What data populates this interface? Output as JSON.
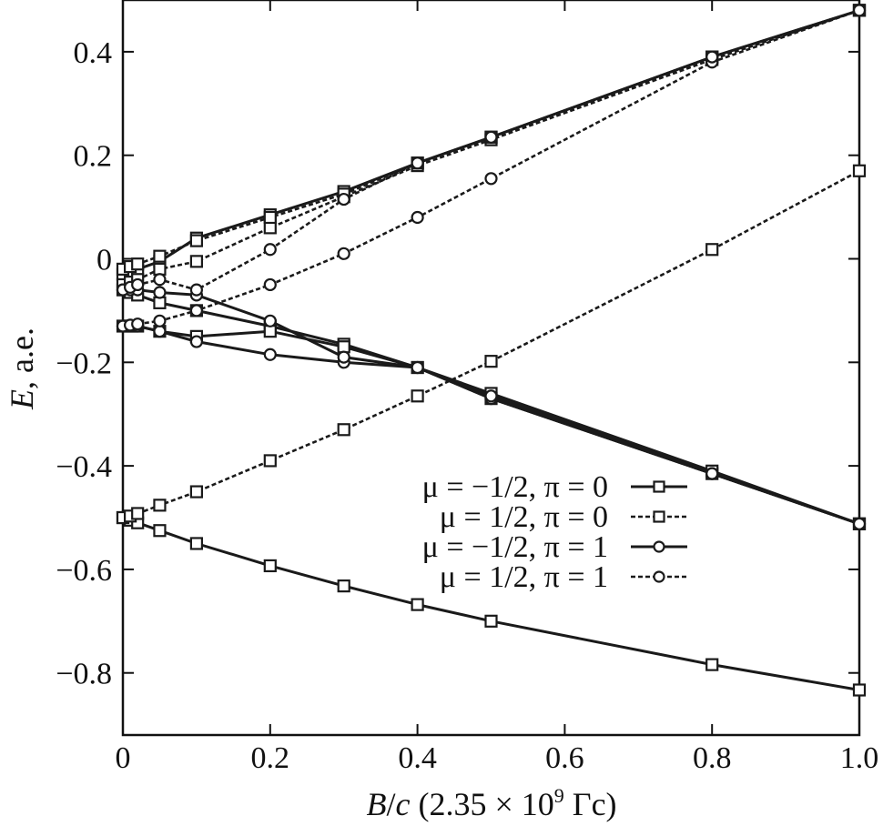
{
  "chart_data": {
    "type": "line",
    "title": "",
    "xlabel_parts": {
      "var": "B",
      "slash": "/",
      "var2": "c",
      "rest_pre": " (2.35 × 10",
      "sup": "9",
      "rest_post": " Гс)"
    },
    "ylabel_parts": {
      "var": "E",
      "rest": ", а.е."
    },
    "xlim": [
      0,
      1.0
    ],
    "ylim": [
      -0.92,
      0.5
    ],
    "x_ticks": [
      0,
      0.2,
      0.4,
      0.6,
      0.8,
      1.0
    ],
    "x_tick_labels": [
      "0",
      "0.2",
      "0.4",
      "0.6",
      "0.8",
      "1.0"
    ],
    "y_ticks": [
      0.4,
      0.2,
      0,
      -0.2,
      -0.4,
      -0.6,
      -0.8
    ],
    "y_tick_labels": [
      "0.4",
      "0.2",
      "0",
      "−0.2",
      "−0.4",
      "−0.6",
      "−0.8"
    ],
    "grid": false,
    "legend_position": "center-right",
    "x": [
      0,
      0.01,
      0.02,
      0.05,
      0.1,
      0.2,
      0.3,
      0.4,
      0.5,
      0.8,
      1.0
    ],
    "series": [
      {
        "name": "μ = −1/2, π = 0",
        "style": "solid",
        "marker": "square",
        "color": "#1a1a1a",
        "values": [
          -0.5,
          -0.505,
          -0.51,
          -0.525,
          -0.55,
          -0.593,
          -0.632,
          -0.668,
          -0.7,
          -0.784,
          -0.833
        ]
      },
      {
        "name": "μ = −1/2, π = 0",
        "style": "solid",
        "marker": "square",
        "color": "#1a1a1a",
        "values": [
          -0.06,
          -0.065,
          -0.07,
          -0.085,
          -0.1,
          -0.13,
          -0.165,
          -0.21,
          -0.27,
          -0.415,
          -0.512
        ]
      },
      {
        "name": "μ = −1/2, π = 0",
        "style": "solid",
        "marker": "square",
        "color": "#1a1a1a",
        "values": [
          -0.13,
          -0.13,
          -0.13,
          -0.14,
          -0.15,
          -0.14,
          -0.17,
          -0.21,
          -0.26,
          -0.41,
          -0.512
        ]
      },
      {
        "name": "μ = −1/2, π = 0",
        "style": "solid",
        "marker": "square",
        "color": "#1a1a1a",
        "values": [
          -0.03,
          -0.025,
          -0.02,
          -0.005,
          0.04,
          0.085,
          0.13,
          0.185,
          0.235,
          0.39,
          0.48
        ]
      },
      {
        "name": "μ = 1/2, π = 0",
        "style": "dashed",
        "marker": "square",
        "color": "#1a1a1a",
        "values": [
          -0.5,
          -0.497,
          -0.492,
          -0.476,
          -0.45,
          -0.39,
          -0.33,
          -0.265,
          -0.198,
          0.018,
          0.17
        ]
      },
      {
        "name": "μ = 1/2, π = 0",
        "style": "dashed",
        "marker": "square",
        "color": "#1a1a1a",
        "values": [
          -0.05,
          -0.045,
          -0.04,
          -0.02,
          -0.005,
          0.06,
          0.12,
          0.18,
          0.23,
          0.385,
          0.48
        ]
      },
      {
        "name": "μ = 1/2, π = 0",
        "style": "dashed",
        "marker": "square",
        "color": "#1a1a1a",
        "values": [
          -0.02,
          -0.015,
          -0.01,
          0.005,
          0.035,
          0.08,
          0.125,
          0.185,
          0.235,
          0.39,
          0.48
        ]
      },
      {
        "name": "μ = −1/2, π = 1",
        "style": "solid",
        "marker": "circle",
        "color": "#1a1a1a",
        "values": [
          -0.13,
          -0.13,
          -0.13,
          -0.14,
          -0.16,
          -0.185,
          -0.2,
          -0.21,
          -0.27,
          -0.415,
          -0.512
        ]
      },
      {
        "name": "μ = −1/2, π = 1",
        "style": "solid",
        "marker": "circle",
        "color": "#1a1a1a",
        "values": [
          -0.06,
          -0.06,
          -0.06,
          -0.065,
          -0.07,
          -0.12,
          -0.19,
          -0.21,
          -0.265,
          -0.415,
          -0.512
        ]
      },
      {
        "name": "μ = 1/2, π = 1",
        "style": "dashed",
        "marker": "circle",
        "color": "#1a1a1a",
        "values": [
          -0.13,
          -0.128,
          -0.126,
          -0.12,
          -0.1,
          -0.05,
          0.01,
          0.08,
          0.155,
          0.38,
          0.48
        ]
      },
      {
        "name": "μ = 1/2, π = 1",
        "style": "dashed",
        "marker": "circle",
        "color": "#1a1a1a",
        "values": [
          -0.06,
          -0.055,
          -0.05,
          -0.04,
          -0.06,
          0.018,
          0.115,
          0.185,
          0.235,
          0.39,
          0.48
        ]
      }
    ],
    "legend": [
      {
        "label": "μ = −1/2, π = 0",
        "style": "solid",
        "marker": "square"
      },
      {
        "label": "μ = 1/2, π = 0",
        "style": "dashed",
        "marker": "square"
      },
      {
        "label": "μ = −1/2, π = 1",
        "style": "solid",
        "marker": "circle"
      },
      {
        "label": "μ = 1/2, π = 1",
        "style": "dashed",
        "marker": "circle"
      }
    ]
  }
}
